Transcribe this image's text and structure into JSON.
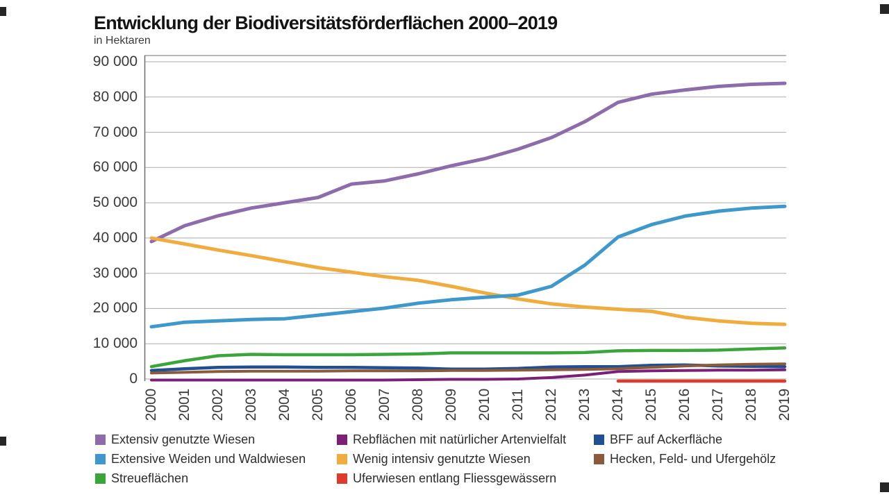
{
  "chart_data": {
    "type": "line",
    "title": "Entwicklung der Biodiversitätsförderflächen 2000–2019",
    "unit_label": "in Hektaren",
    "x": [
      2000,
      2001,
      2002,
      2003,
      2004,
      2005,
      2006,
      2007,
      2008,
      2009,
      2010,
      2011,
      2012,
      2013,
      2014,
      2015,
      2016,
      2017,
      2018,
      2019
    ],
    "x_tick_labels": [
      "2000",
      "2001",
      "2002",
      "2003",
      "2004",
      "2005",
      "2006",
      "2007",
      "2008",
      "2009",
      "2010",
      "2011",
      "2012",
      "2013",
      "2014",
      "2015",
      "2016",
      "2017",
      "2018",
      "2019"
    ],
    "y_axis": {
      "min": 0,
      "max": 90000,
      "tick_interval": 10000,
      "tick_labels": [
        "0",
        "10 000",
        "20 000",
        "30 000",
        "40 000",
        "50 000",
        "60 000",
        "70 000",
        "80 000",
        "90 000"
      ]
    },
    "grid": "horizontal",
    "legend_position": "bottom",
    "series": [
      {
        "name": "Extensiv genutzte Wiesen",
        "color": "#8D6CAB",
        "values": [
          39000,
          43500,
          46300,
          48500,
          50000,
          51500,
          55300,
          56200,
          58200,
          60500,
          62500,
          65200,
          68500,
          73000,
          78500,
          80800,
          82000,
          83000,
          83600,
          83900
        ]
      },
      {
        "name": "Extensive Weiden und Waldwiesen",
        "color": "#3E98CB",
        "values": [
          14800,
          16100,
          16500,
          16900,
          17100,
          18100,
          19100,
          20100,
          21500,
          22500,
          23200,
          23800,
          26300,
          32300,
          40300,
          43800,
          46200,
          47600,
          48500,
          49000
        ]
      },
      {
        "name": "Streueflächen",
        "color": "#3AA53A",
        "values": [
          3500,
          5200,
          6600,
          7000,
          6900,
          6900,
          6900,
          7000,
          7100,
          7400,
          7400,
          7400,
          7400,
          7500,
          8000,
          8100,
          8100,
          8200,
          8500,
          8800
        ]
      },
      {
        "name": "Rebflächen mit natürlicher Artenvielfalt",
        "color": "#7B2079",
        "values": [
          300,
          300,
          300,
          300,
          300,
          300,
          300,
          300,
          400,
          500,
          500,
          600,
          1000,
          1700,
          2700,
          2900,
          3000,
          3100,
          3100,
          3200
        ]
      },
      {
        "name": "Wenig intensiv genutzte Wiesen",
        "color": "#F0AD3D",
        "values": [
          40000,
          38300,
          36600,
          35000,
          33300,
          31600,
          30300,
          29000,
          28000,
          26300,
          24400,
          22700,
          21300,
          20400,
          19800,
          19200,
          17500,
          16500,
          15800,
          15500
        ]
      },
      {
        "name": "Uferwiesen entlang Fliessgewässern",
        "color": "#DD3C2A",
        "values": [
          null,
          null,
          null,
          null,
          null,
          null,
          null,
          null,
          null,
          null,
          null,
          null,
          null,
          null,
          200,
          200,
          200,
          200,
          200,
          200
        ]
      },
      {
        "name": "BFF auf Ackerfläche",
        "color": "#204F93",
        "values": [
          2400,
          2900,
          3300,
          3400,
          3400,
          3300,
          3300,
          3200,
          3100,
          2800,
          2800,
          3000,
          3400,
          3500,
          3500,
          3900,
          4000,
          3700,
          3600,
          3500
        ]
      },
      {
        "name": "Hecken, Feld- und Ufergehölz",
        "color": "#8A5A3B",
        "values": [
          1700,
          1900,
          2100,
          2200,
          2200,
          2200,
          2300,
          2300,
          2300,
          2400,
          2400,
          2500,
          2600,
          2700,
          2900,
          3300,
          3700,
          4000,
          4200,
          4300
        ]
      }
    ]
  },
  "legend": {
    "columns": [
      [
        0,
        1,
        2
      ],
      [
        3,
        4,
        5
      ],
      [
        6,
        7
      ]
    ]
  }
}
